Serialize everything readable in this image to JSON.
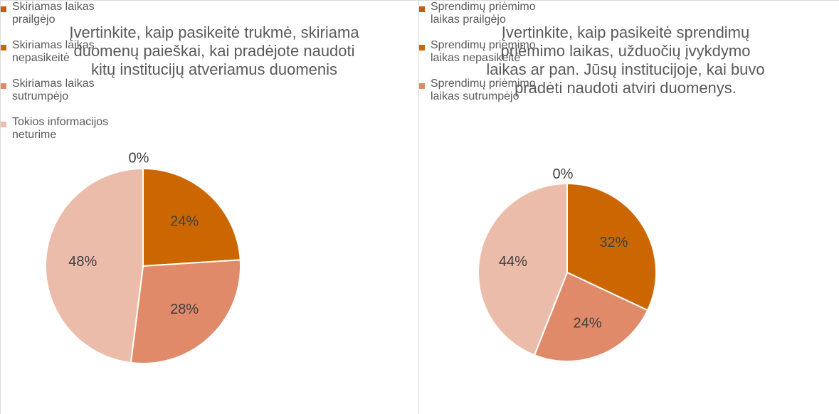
{
  "chart_data": [
    {
      "type": "pie",
      "title": "Įvertinkite, kaip pasikeitė  trukmė, skiriama duomenų paieškai, kai pradėjote naudoti kitų institucijų atveriamus duomenis",
      "categories": [
        "Skiriamas laikas prailgėjo",
        "Skiriamas laikas nepasikeitė",
        "Skiriamas laikas sutrumpėjo",
        "Tokios informacijos neturime"
      ],
      "values": [
        0,
        24,
        28,
        48
      ],
      "value_labels": [
        "0%",
        "24%",
        "28%",
        "48%"
      ],
      "colors": [
        "#c55a11",
        "#cc6600",
        "#e08a6a",
        "#ecbcab"
      ],
      "legend": "right"
    },
    {
      "type": "pie",
      "title": "Įvertinkite, kaip pasikeitė sprendimų priėmimo laikas, užduočių įvykdymo laikas ar pan. Jūsų institucijoje, kai buvo pradėti naudoti atviri duomenys.",
      "categories": [
        "Sprendimų priėmimo laikas prailgėjo",
        "Sprendimų priėmimo laikas nepasikeitė",
        "Sprendimų priėmimo laikas sutrumpėjo",
        null
      ],
      "values": [
        0,
        32,
        24,
        44
      ],
      "value_labels": [
        "0%",
        "32%",
        "24%",
        "44%"
      ],
      "colors": [
        "#c55a11",
        "#cc6600",
        "#e08a6a",
        "#ecbcab"
      ],
      "legend": "right"
    }
  ]
}
